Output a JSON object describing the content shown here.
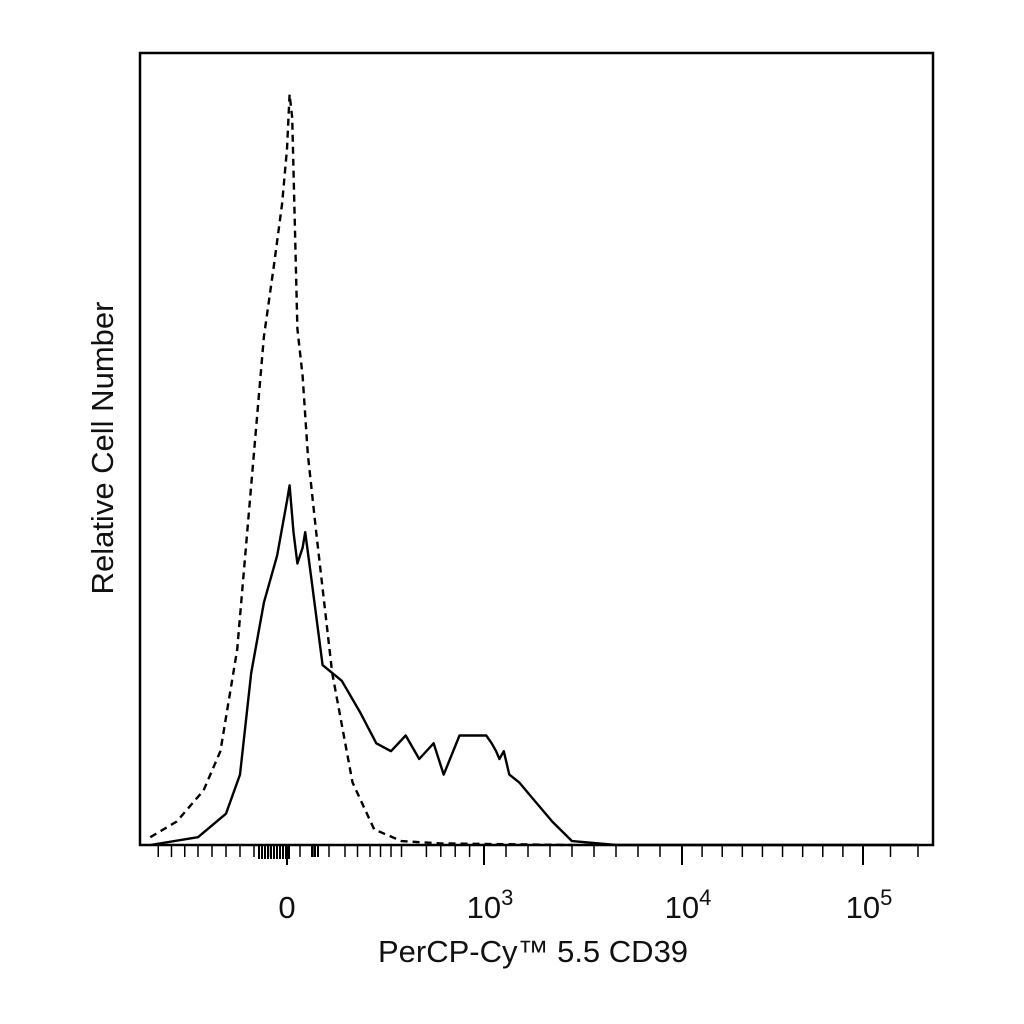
{
  "chart_data": {
    "type": "line",
    "title": "",
    "xlabel": "PerCP-Cy™ 5.5 CD39",
    "ylabel": "Relative Cell Number",
    "x_scale": "biexponential (linear near 0, log above ~10^2.5)",
    "xlim": [
      -500,
      200000
    ],
    "ylim": [
      0,
      100
    ],
    "grid": false,
    "legend": "none",
    "x_tick_labels": [
      {
        "value": 0,
        "base": "0",
        "exp": ""
      },
      {
        "value": 1000,
        "base": "10",
        "exp": "3"
      },
      {
        "value": 10000,
        "base": "10",
        "exp": "4"
      },
      {
        "value": 100000,
        "base": "10",
        "exp": "5"
      }
    ],
    "series": [
      {
        "style": "dashed",
        "color": "#000000",
        "points": [
          [
            -480,
            1
          ],
          [
            -380,
            3
          ],
          [
            -280,
            7
          ],
          [
            -220,
            12
          ],
          [
            -160,
            25
          ],
          [
            -110,
            46
          ],
          [
            -70,
            65
          ],
          [
            -40,
            74
          ],
          [
            -15,
            82
          ],
          [
            0,
            89
          ],
          [
            10,
            96
          ],
          [
            20,
            93
          ],
          [
            40,
            66
          ],
          [
            60,
            60
          ],
          [
            80,
            50
          ],
          [
            110,
            40
          ],
          [
            160,
            22
          ],
          [
            230,
            8
          ],
          [
            320,
            2
          ],
          [
            450,
            0.5
          ],
          [
            700,
            0.2
          ],
          [
            5000,
            0
          ]
        ]
      },
      {
        "style": "solid",
        "color": "#000000",
        "points": [
          [
            -480,
            0
          ],
          [
            -300,
            1
          ],
          [
            -200,
            4
          ],
          [
            -150,
            9
          ],
          [
            -110,
            22
          ],
          [
            -70,
            31
          ],
          [
            -30,
            37
          ],
          [
            0,
            44
          ],
          [
            10,
            46
          ],
          [
            25,
            40
          ],
          [
            40,
            36
          ],
          [
            60,
            38
          ],
          [
            70,
            40
          ],
          [
            90,
            35
          ],
          [
            130,
            23
          ],
          [
            190,
            21
          ],
          [
            260,
            17
          ],
          [
            330,
            13
          ],
          [
            400,
            12
          ],
          [
            470,
            14
          ],
          [
            550,
            11
          ],
          [
            650,
            13
          ],
          [
            720,
            9
          ],
          [
            830,
            14
          ],
          [
            960,
            14
          ],
          [
            1100,
            14
          ],
          [
            1350,
            13
          ],
          [
            1550,
            12
          ],
          [
            1700,
            11
          ],
          [
            1900,
            12
          ],
          [
            2150,
            9
          ],
          [
            2600,
            8
          ],
          [
            3200,
            6
          ],
          [
            4100,
            3
          ],
          [
            5000,
            0.5
          ],
          [
            7000,
            0
          ],
          [
            200000,
            0
          ]
        ]
      }
    ]
  }
}
